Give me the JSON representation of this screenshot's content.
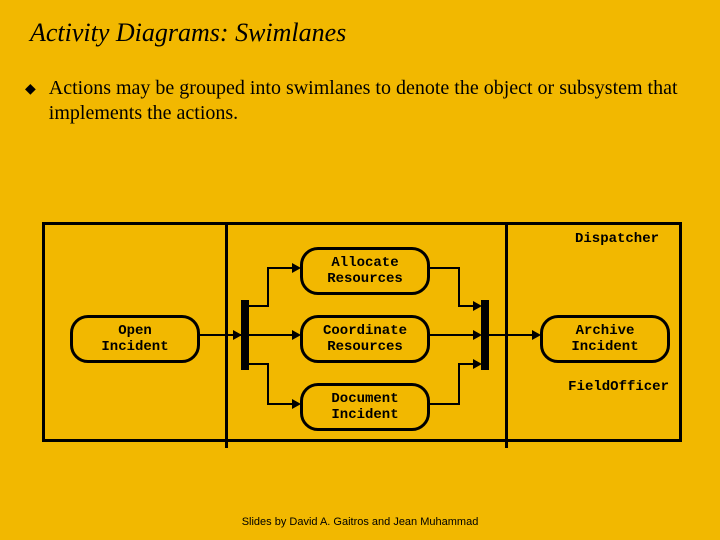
{
  "title": "Activity Diagrams: Swimlanes",
  "bullet_glyph": "◆",
  "body_text": "Actions may be grouped into swimlanes to denote the object or subsystem that implements the actions.",
  "lanes": {
    "top": "Dispatcher",
    "bottom": "FieldOfficer"
  },
  "activities": {
    "open": "Open\nIncident",
    "allocate": "Allocate\nResources",
    "coordinate": "Coordinate\nResources",
    "document": "Document\nIncident",
    "archive": "Archive\nIncident"
  },
  "footer": "Slides by David A. Gaitros and Jean Muhammad",
  "colors": {
    "background": "#f2b800",
    "line": "#000000"
  }
}
